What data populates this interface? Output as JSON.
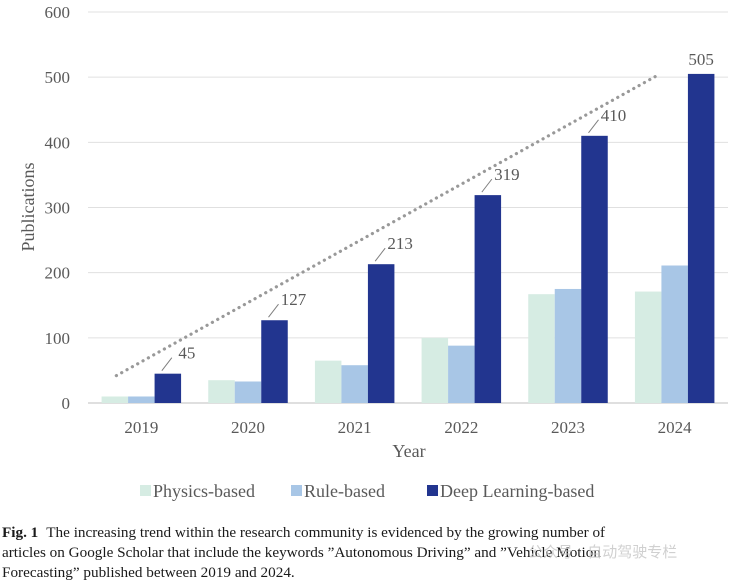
{
  "chart_data": {
    "type": "bar",
    "categories": [
      "2019",
      "2020",
      "2021",
      "2022",
      "2023",
      "2024"
    ],
    "series": [
      {
        "name": "Physics-based",
        "color": "#d6ece3",
        "values": [
          10,
          35,
          65,
          100,
          167,
          171
        ]
      },
      {
        "name": "Rule-based",
        "color": "#a8c6e6",
        "values": [
          10,
          33,
          58,
          88,
          175,
          211
        ]
      },
      {
        "name": "Deep Learning-based",
        "color": "#22358f",
        "values": [
          45,
          127,
          213,
          319,
          410,
          505
        ]
      }
    ],
    "data_labels": [
      "45",
      "127",
      "213",
      "319",
      "410",
      "505"
    ],
    "trendline": {
      "style": "dotted",
      "color": "#999999",
      "from": [
        "2019",
        42
      ],
      "to": [
        "2024",
        503
      ]
    },
    "xlabel": "Year",
    "ylabel": "Publications",
    "ylim": [
      0,
      600
    ],
    "yticks": [
      0,
      100,
      200,
      300,
      400,
      500,
      600
    ],
    "grid": true,
    "legend_position": "bottom-center"
  },
  "caption": {
    "label": "Fig. 1",
    "line1": "The increasing trend within the research community is evidenced by the growing number of",
    "line2": "articles on Google Scholar that include the keywords ”Autonomous Driving” and ”Vehicle Motion",
    "line3": "Forecasting” published between 2019 and 2024."
  },
  "watermark": "公众号 · 自动驾驶专栏"
}
